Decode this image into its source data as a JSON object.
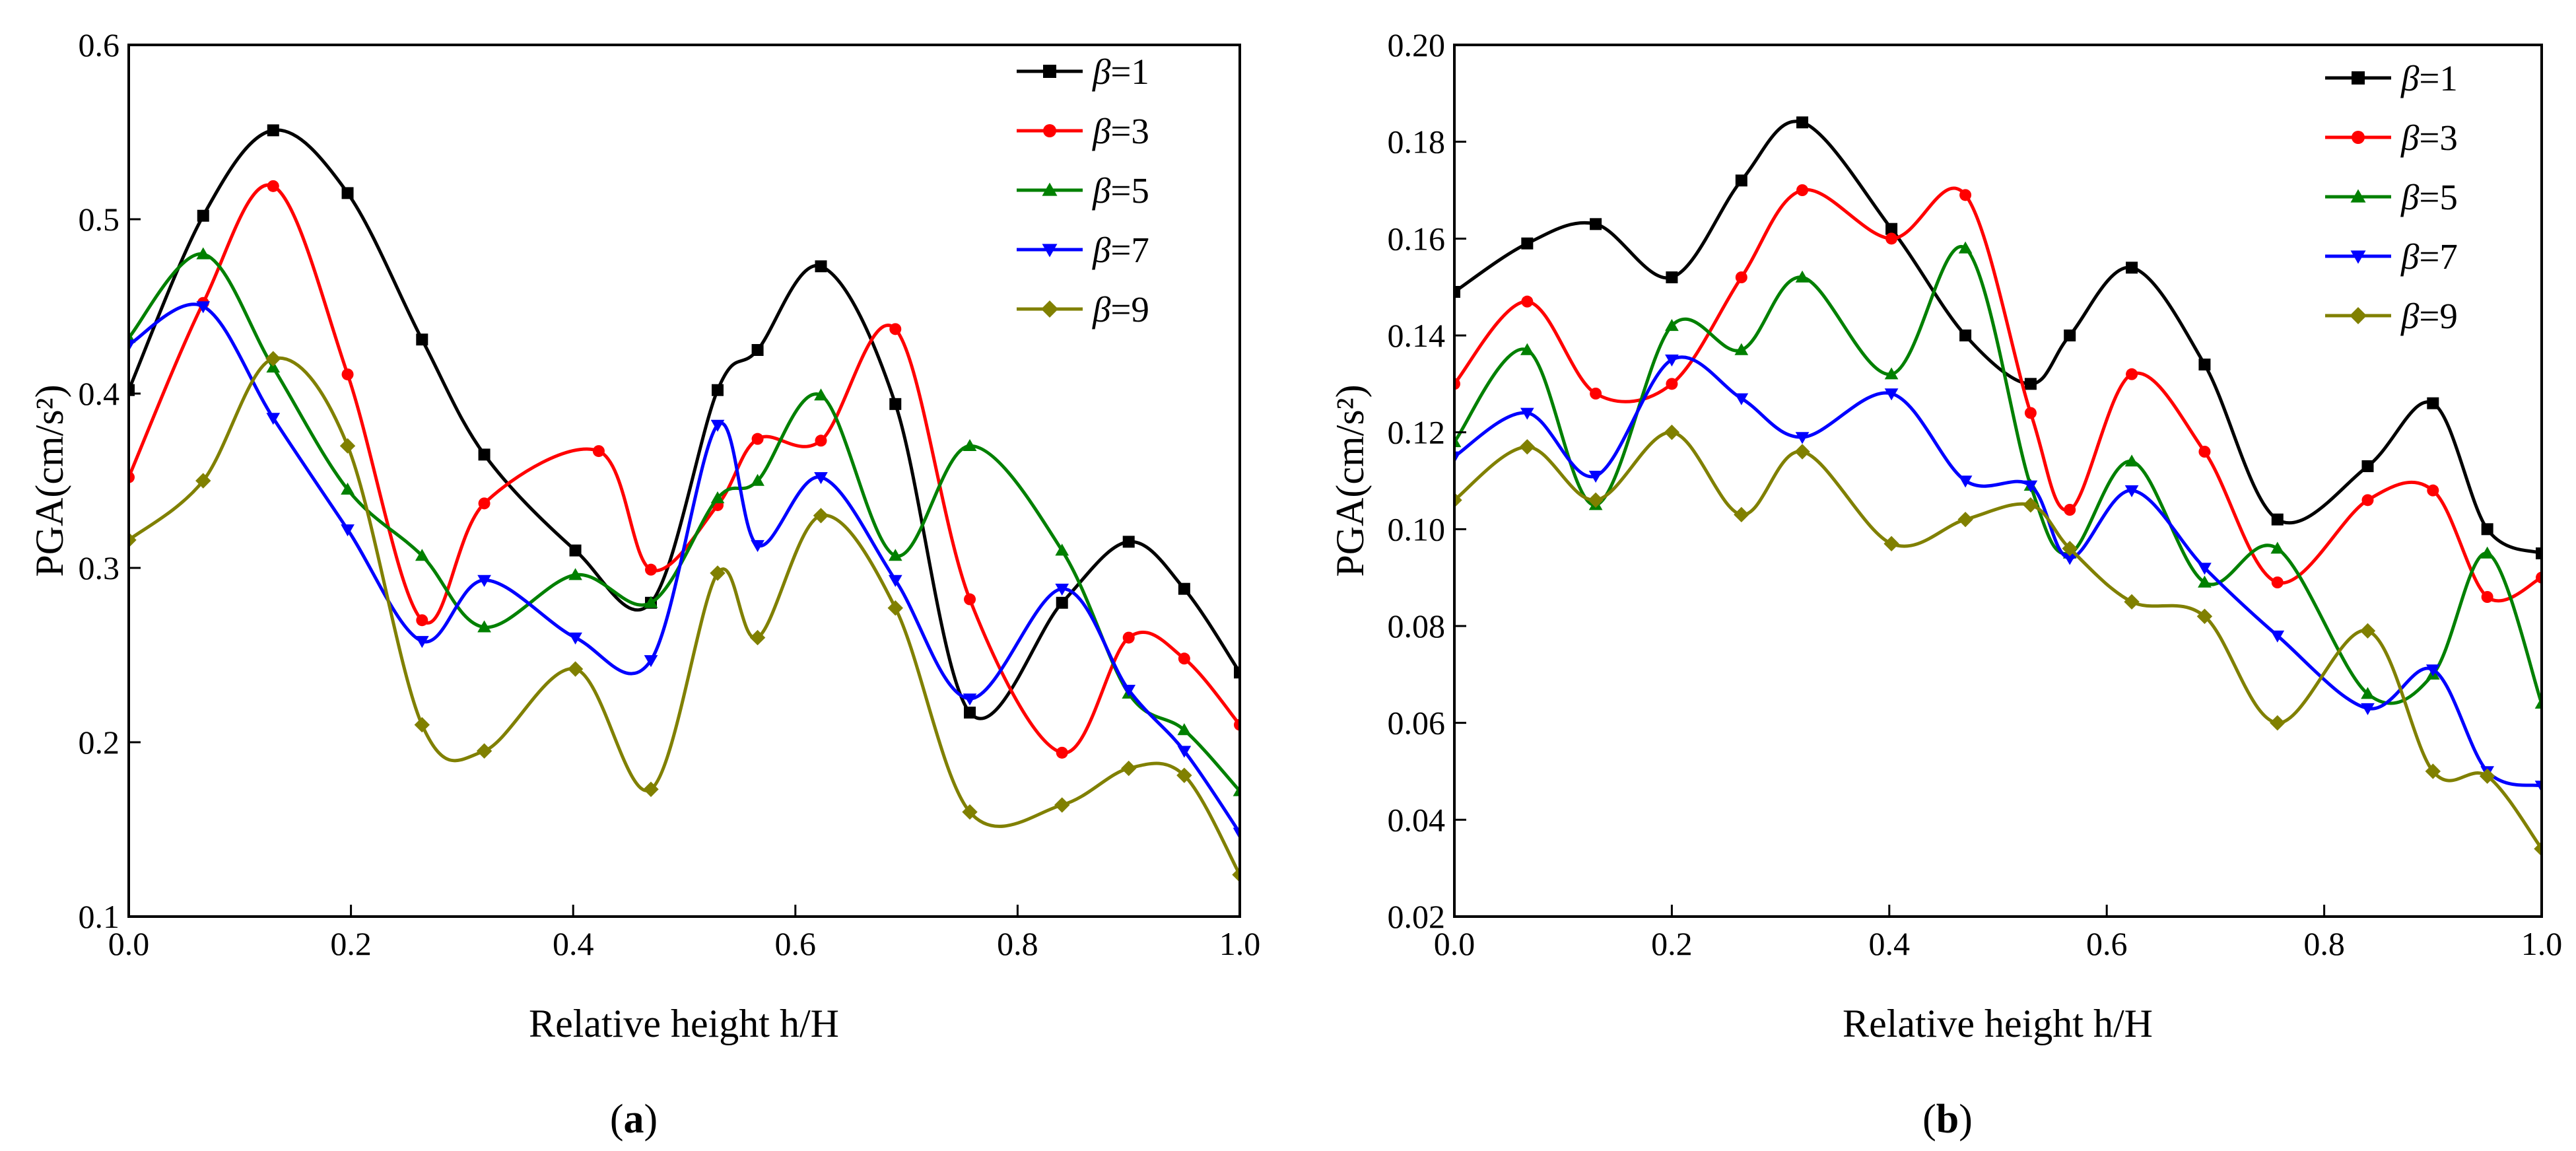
{
  "chart_data": [
    {
      "type": "line",
      "panel_label": "a",
      "xlabel": "Relative height h/H",
      "ylabel": "PGA(cm/s²)",
      "xlim": [
        0.0,
        1.0
      ],
      "ylim": [
        0.1,
        0.6
      ],
      "xticks": [
        "0.0",
        "0.2",
        "0.4",
        "0.6",
        "0.8",
        "1.0"
      ],
      "yticks": [
        "0.1",
        "0.2",
        "0.3",
        "0.4",
        "0.5",
        "0.6"
      ],
      "legend_position": "top-right",
      "series": [
        {
          "name": "β=1",
          "beta_symbol": "β",
          "beta_value": "=1",
          "color": "#000000",
          "marker": "square",
          "x": [
            0.0,
            0.067,
            0.13,
            0.197,
            0.264,
            0.32,
            0.402,
            0.47,
            0.53,
            0.566,
            0.623,
            0.69,
            0.757,
            0.84,
            0.9,
            0.95,
            1.0
          ],
          "y": [
            0.402,
            0.502,
            0.551,
            0.515,
            0.431,
            0.365,
            0.31,
            0.28,
            0.402,
            0.425,
            0.473,
            0.394,
            0.217,
            0.28,
            0.315,
            0.288,
            0.24
          ]
        },
        {
          "name": "β=3",
          "beta_symbol": "β",
          "beta_value": "=3",
          "color": "#ff0000",
          "marker": "circle",
          "x": [
            0.0,
            0.067,
            0.13,
            0.197,
            0.264,
            0.32,
            0.423,
            0.47,
            0.53,
            0.566,
            0.623,
            0.69,
            0.757,
            0.84,
            0.9,
            0.95,
            1.0
          ],
          "y": [
            0.352,
            0.452,
            0.519,
            0.411,
            0.27,
            0.337,
            0.367,
            0.299,
            0.336,
            0.374,
            0.373,
            0.437,
            0.282,
            0.194,
            0.26,
            0.248,
            0.21
          ]
        },
        {
          "name": "β=5",
          "beta_symbol": "β",
          "beta_value": "=5",
          "color": "#008000",
          "marker": "triangle-up",
          "x": [
            0.0,
            0.067,
            0.13,
            0.197,
            0.264,
            0.32,
            0.402,
            0.47,
            0.53,
            0.566,
            0.623,
            0.69,
            0.757,
            0.84,
            0.9,
            0.95,
            1.0
          ],
          "y": [
            0.432,
            0.48,
            0.415,
            0.345,
            0.307,
            0.266,
            0.296,
            0.28,
            0.34,
            0.35,
            0.399,
            0.307,
            0.37,
            0.31,
            0.228,
            0.207,
            0.172
          ]
        },
        {
          "name": "β=7",
          "beta_symbol": "β",
          "beta_value": "=7",
          "color": "#0000ff",
          "marker": "triangle-down",
          "x": [
            0.0,
            0.067,
            0.13,
            0.197,
            0.264,
            0.32,
            0.402,
            0.47,
            0.53,
            0.566,
            0.623,
            0.69,
            0.757,
            0.84,
            0.9,
            0.95,
            1.0
          ],
          "y": [
            0.428,
            0.45,
            0.386,
            0.322,
            0.258,
            0.293,
            0.26,
            0.247,
            0.382,
            0.313,
            0.352,
            0.293,
            0.225,
            0.288,
            0.23,
            0.195,
            0.148
          ]
        },
        {
          "name": "β=9",
          "beta_symbol": "β",
          "beta_value": "=9",
          "color": "#808000",
          "marker": "diamond",
          "x": [
            0.0,
            0.067,
            0.13,
            0.197,
            0.264,
            0.32,
            0.402,
            0.47,
            0.53,
            0.566,
            0.623,
            0.69,
            0.757,
            0.84,
            0.9,
            0.95,
            1.0
          ],
          "y": [
            0.316,
            0.35,
            0.42,
            0.37,
            0.21,
            0.195,
            0.242,
            0.173,
            0.297,
            0.26,
            0.33,
            0.277,
            0.16,
            0.164,
            0.185,
            0.181,
            0.124
          ]
        }
      ]
    },
    {
      "type": "line",
      "panel_label": "b",
      "xlabel": "Relative height h/H",
      "ylabel": "PGA(cm/s²)",
      "xlim": [
        0.0,
        1.0
      ],
      "ylim": [
        0.02,
        0.2
      ],
      "xticks": [
        "0.0",
        "0.2",
        "0.4",
        "0.6",
        "0.8",
        "1.0"
      ],
      "yticks": [
        "0.02",
        "0.04",
        "0.06",
        "0.08",
        "0.10",
        "0.12",
        "0.14",
        "0.16",
        "0.18",
        "0.20"
      ],
      "legend_position": "top-right",
      "series": [
        {
          "name": "β=1",
          "beta_symbol": "β",
          "beta_value": "=1",
          "color": "#000000",
          "marker": "square",
          "x": [
            0.0,
            0.067,
            0.13,
            0.2,
            0.264,
            0.32,
            0.402,
            0.47,
            0.53,
            0.566,
            0.623,
            0.69,
            0.757,
            0.84,
            0.9,
            0.95,
            1.0
          ],
          "y": [
            0.149,
            0.159,
            0.163,
            0.152,
            0.172,
            0.184,
            0.162,
            0.14,
            0.13,
            0.14,
            0.154,
            0.134,
            0.102,
            0.113,
            0.126,
            0.1,
            0.095
          ]
        },
        {
          "name": "β=3",
          "beta_symbol": "β",
          "beta_value": "=3",
          "color": "#ff0000",
          "marker": "circle",
          "x": [
            0.0,
            0.067,
            0.13,
            0.2,
            0.264,
            0.32,
            0.402,
            0.47,
            0.53,
            0.566,
            0.623,
            0.69,
            0.757,
            0.84,
            0.9,
            0.95,
            1.0
          ],
          "y": [
            0.13,
            0.147,
            0.128,
            0.13,
            0.152,
            0.17,
            0.16,
            0.169,
            0.124,
            0.104,
            0.132,
            0.116,
            0.089,
            0.106,
            0.108,
            0.086,
            0.09
          ]
        },
        {
          "name": "β=5",
          "beta_symbol": "β",
          "beta_value": "=5",
          "color": "#008000",
          "marker": "triangle-up",
          "x": [
            0.0,
            0.067,
            0.13,
            0.2,
            0.264,
            0.32,
            0.402,
            0.47,
            0.53,
            0.566,
            0.623,
            0.69,
            0.757,
            0.84,
            0.9,
            0.95,
            1.0
          ],
          "y": [
            0.118,
            0.137,
            0.105,
            0.142,
            0.137,
            0.152,
            0.132,
            0.158,
            0.109,
            0.095,
            0.114,
            0.089,
            0.096,
            0.066,
            0.07,
            0.095,
            0.064
          ]
        },
        {
          "name": "β=7",
          "beta_symbol": "β",
          "beta_value": "=7",
          "color": "#0000ff",
          "marker": "triangle-down",
          "x": [
            0.0,
            0.067,
            0.13,
            0.2,
            0.264,
            0.32,
            0.402,
            0.47,
            0.53,
            0.566,
            0.623,
            0.69,
            0.757,
            0.84,
            0.9,
            0.95,
            1.0
          ],
          "y": [
            0.115,
            0.124,
            0.111,
            0.135,
            0.127,
            0.119,
            0.128,
            0.11,
            0.109,
            0.094,
            0.108,
            0.092,
            0.078,
            0.063,
            0.071,
            0.05,
            0.047
          ]
        },
        {
          "name": "β=9",
          "beta_symbol": "β",
          "beta_value": "=9",
          "color": "#808000",
          "marker": "diamond",
          "x": [
            0.0,
            0.067,
            0.13,
            0.2,
            0.264,
            0.32,
            0.402,
            0.47,
            0.53,
            0.566,
            0.623,
            0.69,
            0.757,
            0.84,
            0.9,
            0.95,
            1.0
          ],
          "y": [
            0.106,
            0.117,
            0.106,
            0.12,
            0.103,
            0.116,
            0.097,
            0.102,
            0.105,
            0.096,
            0.085,
            0.082,
            0.06,
            0.079,
            0.05,
            0.049,
            0.034
          ]
        }
      ]
    }
  ]
}
